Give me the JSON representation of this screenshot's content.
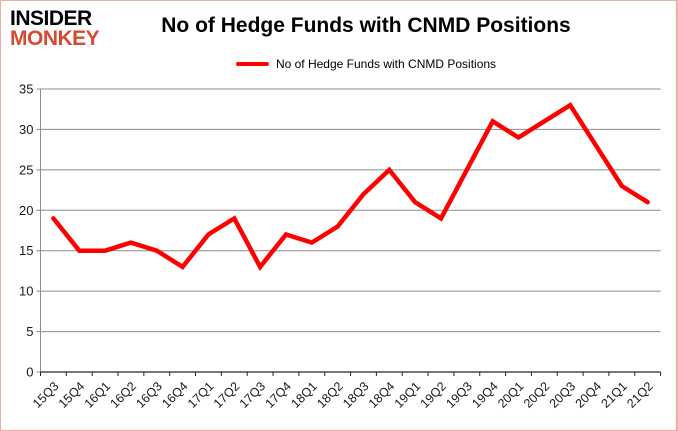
{
  "logo": {
    "line1": "INSIDER",
    "line2": "MONKEY"
  },
  "header": {
    "title": "No of Hedge Funds with CNMD Positions"
  },
  "legend": {
    "label": "No of Hedge Funds with CNMD Positions"
  },
  "colors": {
    "series": "#ff0000",
    "logo_accent": "#d64a32",
    "gridline": "#8c8c8c",
    "axis": "#262626",
    "tick_label": "#1a1a1a",
    "border": "#f0aba3"
  },
  "chart_data": {
    "type": "line",
    "title": "No of Hedge Funds with CNMD Positions",
    "xlabel": "",
    "ylabel": "",
    "categories": [
      "15Q3",
      "15Q4",
      "16Q1",
      "16Q2",
      "16Q3",
      "16Q4",
      "17Q1",
      "17Q2",
      "17Q3",
      "17Q4",
      "18Q1",
      "18Q2",
      "18Q3",
      "18Q4",
      "19Q1",
      "19Q2",
      "19Q3",
      "19Q4",
      "20Q1",
      "20Q2",
      "20Q3",
      "20Q4",
      "21Q1",
      "21Q2"
    ],
    "series": [
      {
        "name": "No of Hedge Funds with CNMD Positions",
        "color": "#ff0000",
        "values": [
          19,
          15,
          15,
          16,
          15,
          13,
          17,
          19,
          13,
          17,
          16,
          18,
          22,
          25,
          21,
          19,
          25,
          31,
          29,
          31,
          33,
          28,
          23,
          21
        ]
      }
    ],
    "ylim": [
      0,
      35
    ],
    "yticks": [
      0,
      5,
      10,
      15,
      20,
      25,
      30,
      35
    ],
    "grid": true,
    "legend_position": "top"
  }
}
